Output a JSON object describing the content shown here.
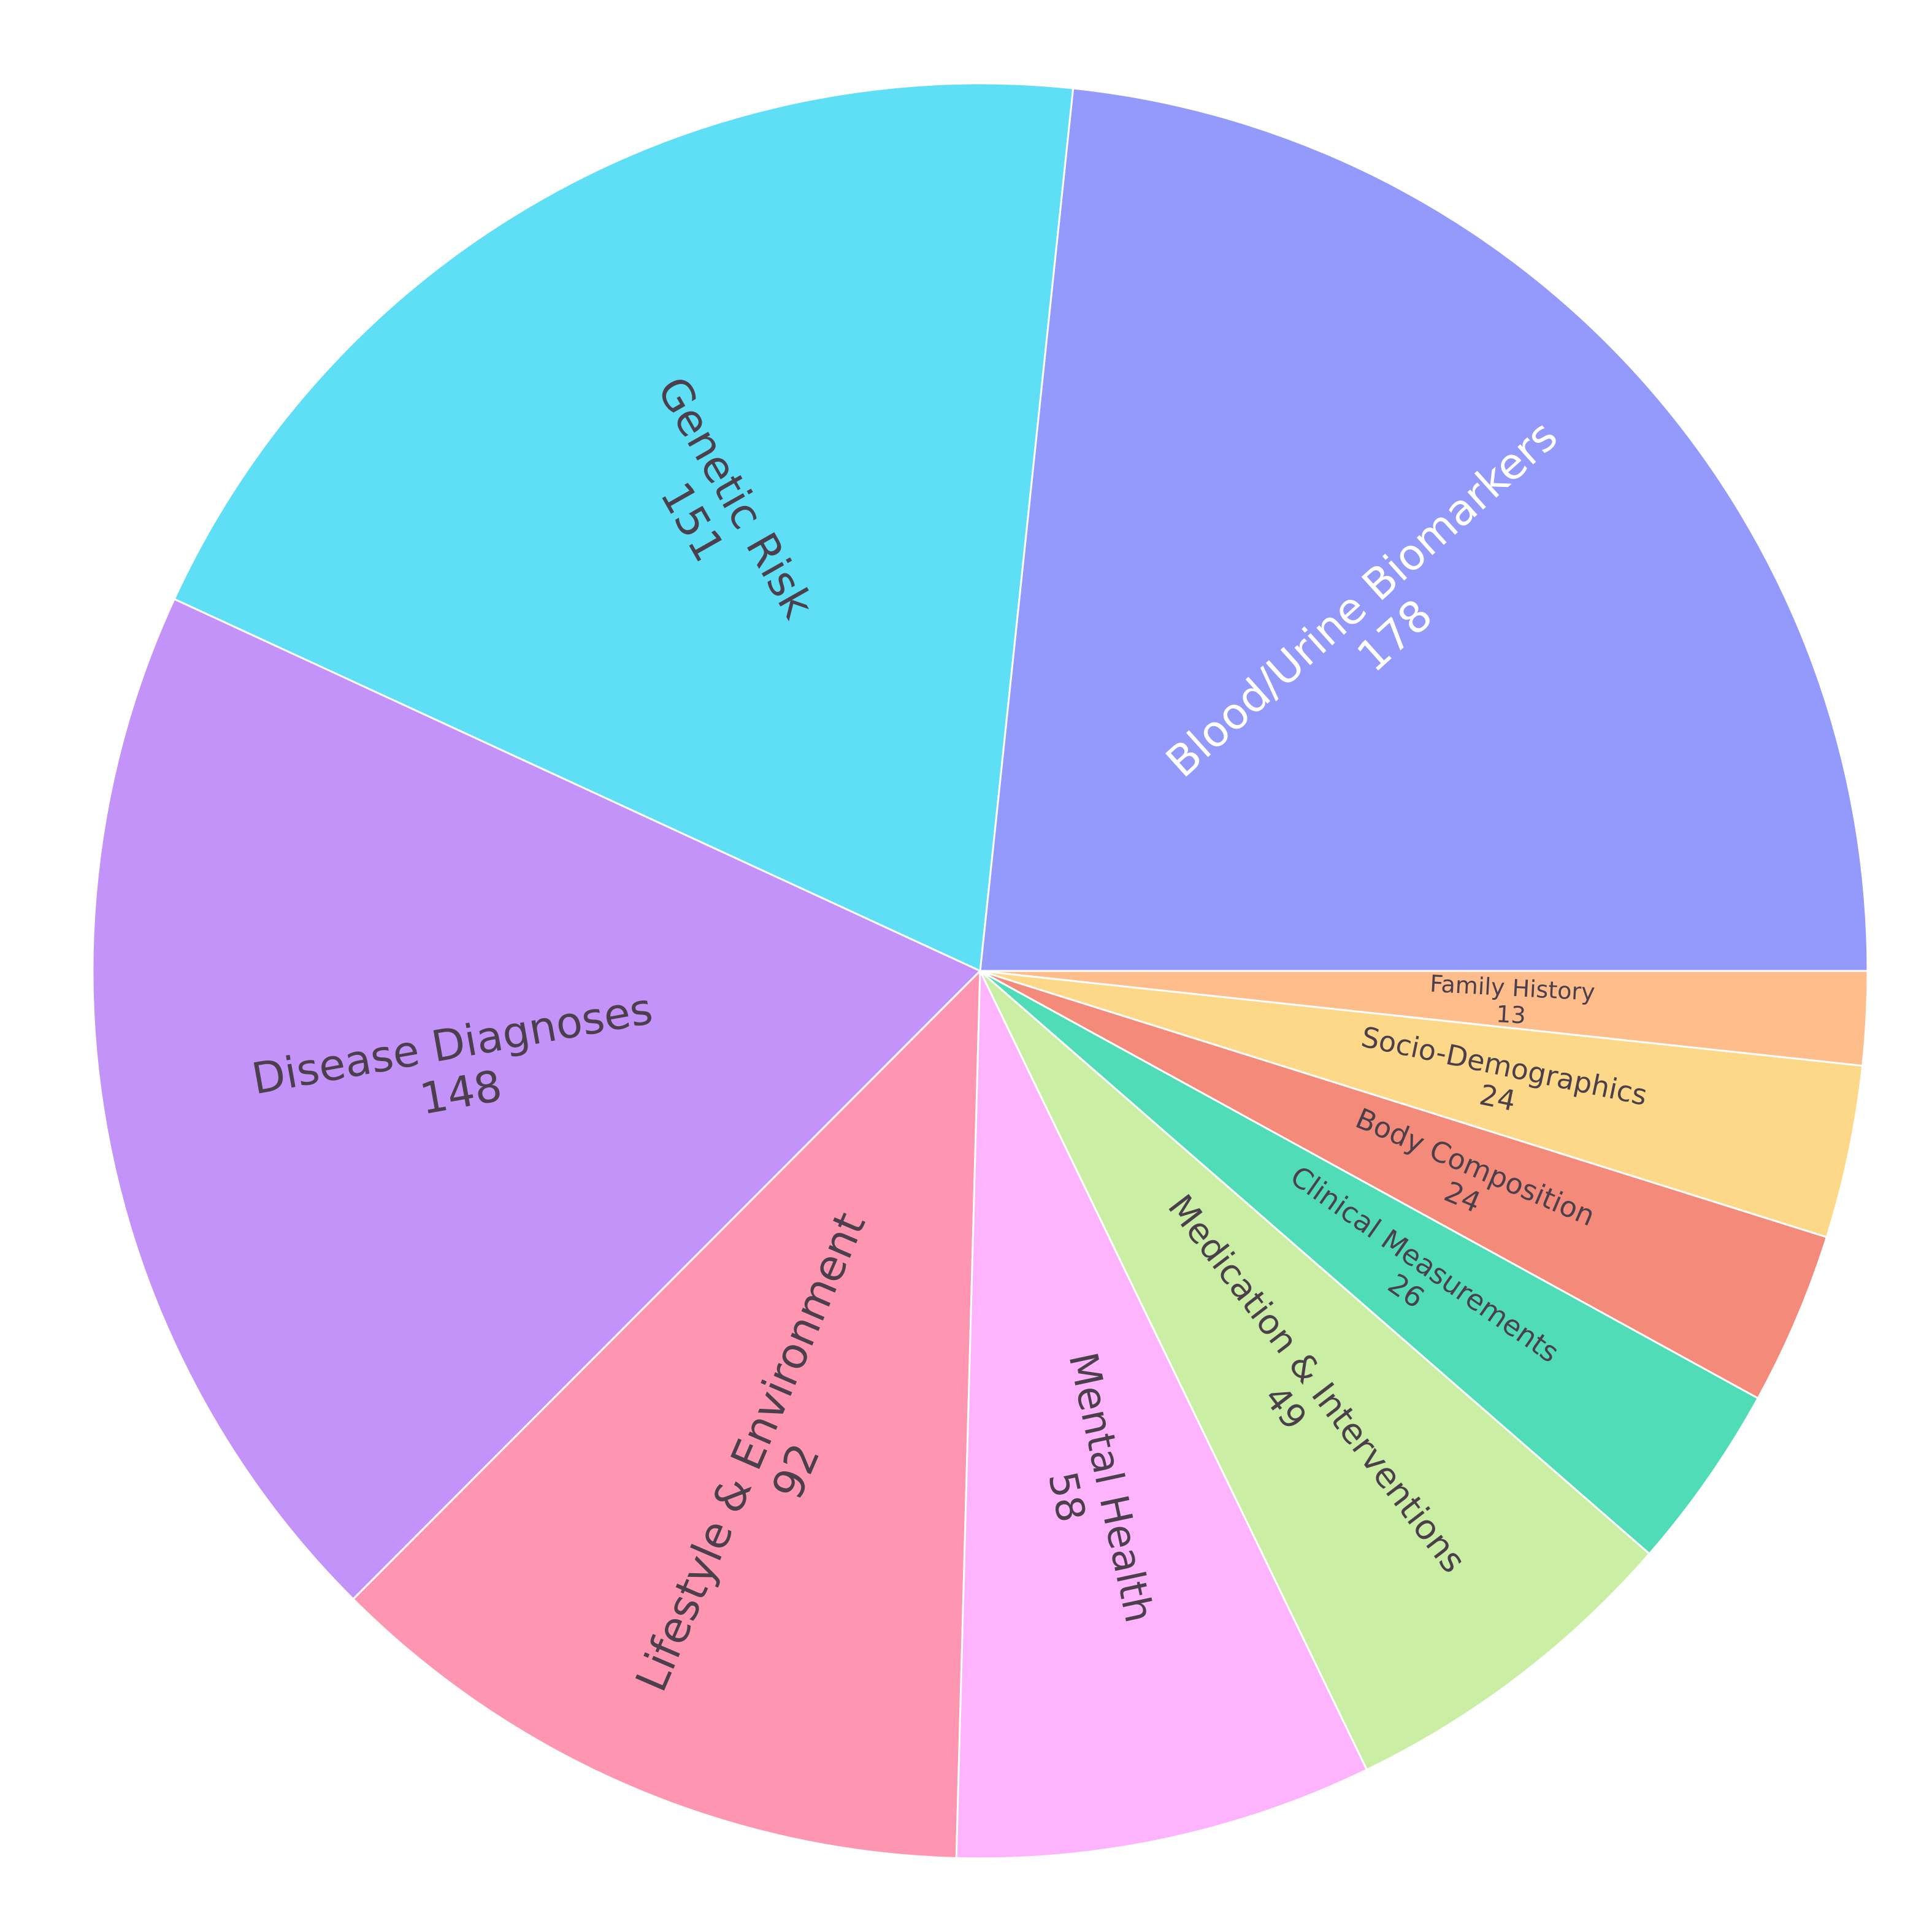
{
  "chart_data": {
    "type": "pie",
    "title": "",
    "start_angle_deg": 0,
    "direction": "counterclockwise",
    "text_color": "#4a3f4b",
    "slices": [
      {
        "label": "Blood/Urine Biomarkers",
        "value": 178,
        "color": "#939afb",
        "text_color": "#ffffff"
      },
      {
        "label": "Genetic Risk",
        "value": 151,
        "color": "#5fdff6"
      },
      {
        "label": "Disease Diagnoses",
        "value": 148,
        "color": "#c393f9"
      },
      {
        "label": "Lifestyle & Environment",
        "value": 92,
        "color": "#fe96b2"
      },
      {
        "label": "Mental Health",
        "value": 58,
        "color": "#feb4fc"
      },
      {
        "label": "Medication & Interventions",
        "value": 49,
        "color": "#caeea3"
      },
      {
        "label": "Clinical Measurements",
        "value": 26,
        "color": "#50dcb7"
      },
      {
        "label": "Body Composition",
        "value": 24,
        "color": "#f48a79"
      },
      {
        "label": "Socio-Demographics",
        "value": 24,
        "color": "#fdd888"
      },
      {
        "label": "Family History",
        "value": 13,
        "color": "#ffbd8c"
      }
    ]
  }
}
